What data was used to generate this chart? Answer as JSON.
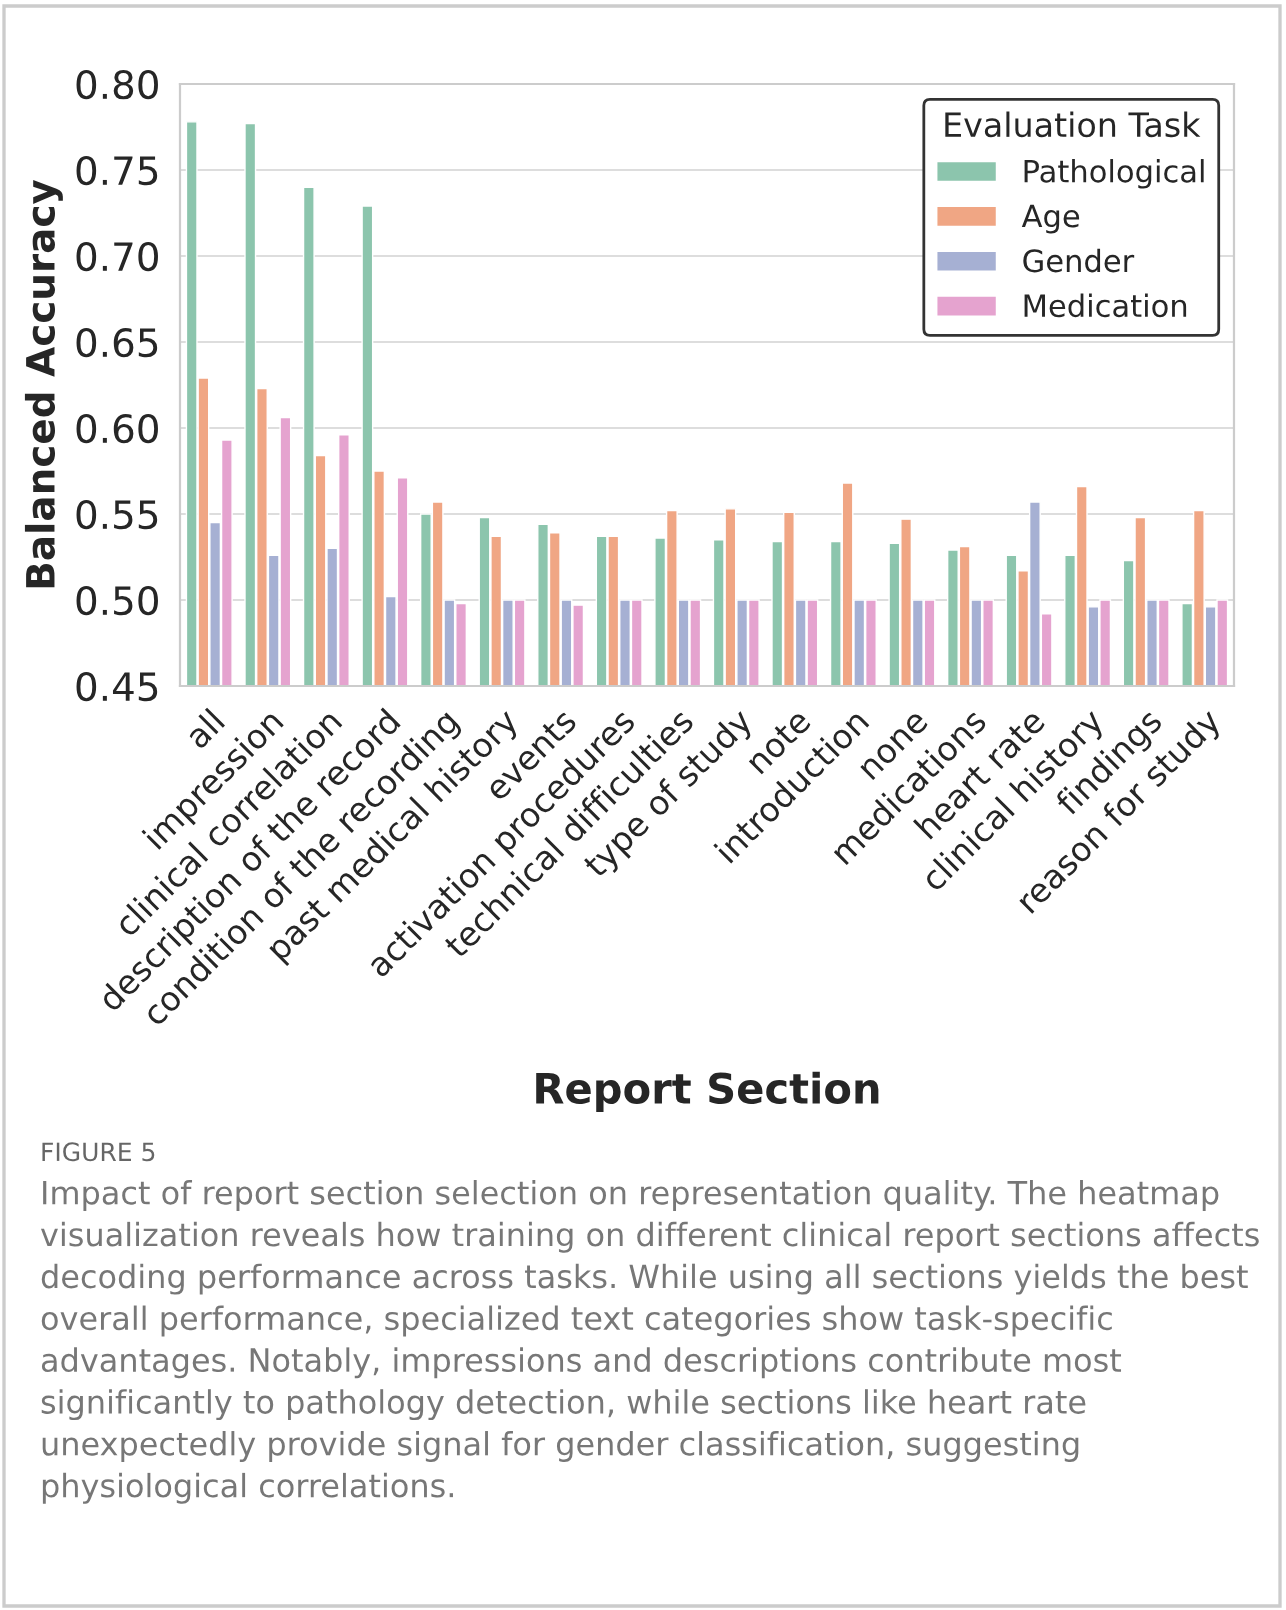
{
  "chart_data": {
    "type": "bar",
    "xlabel": "Report Section",
    "ylabel": "Balanced Accuracy",
    "legend_title": "Evaluation Task",
    "categories": [
      "all",
      "impression",
      "clinical correlation",
      "description of the record",
      "condition of the recording",
      "past medical history",
      "events",
      "activation procedures",
      "technical difficulties",
      "type of study",
      "note",
      "introduction",
      "none",
      "medications",
      "heart rate",
      "clinical history",
      "findings",
      "reason for study"
    ],
    "series": [
      {
        "name": "Pathological",
        "color": "#8cc5ad",
        "values": [
          0.778,
          0.777,
          0.74,
          0.729,
          0.55,
          0.548,
          0.544,
          0.537,
          0.536,
          0.535,
          0.534,
          0.534,
          0.533,
          0.529,
          0.526,
          0.526,
          0.523,
          0.498
        ]
      },
      {
        "name": "Age",
        "color": "#f0a684",
        "values": [
          0.629,
          0.623,
          0.584,
          0.575,
          0.557,
          0.537,
          0.539,
          0.537,
          0.552,
          0.553,
          0.551,
          0.568,
          0.547,
          0.531,
          0.517,
          0.566,
          0.548,
          0.552
        ]
      },
      {
        "name": "Gender",
        "color": "#a6b0d3",
        "values": [
          0.545,
          0.526,
          0.53,
          0.502,
          0.5,
          0.5,
          0.5,
          0.5,
          0.5,
          0.5,
          0.5,
          0.5,
          0.5,
          0.5,
          0.557,
          0.496,
          0.5,
          0.496
        ]
      },
      {
        "name": "Medication",
        "color": "#e5a3cf",
        "values": [
          0.593,
          0.606,
          0.596,
          0.571,
          0.498,
          0.5,
          0.497,
          0.5,
          0.5,
          0.5,
          0.5,
          0.5,
          0.5,
          0.5,
          0.492,
          0.5,
          0.5,
          0.5
        ]
      }
    ],
    "ylim": [
      0.45,
      0.8
    ],
    "yticks": [
      {
        "value": 0.45,
        "label": "0.45"
      },
      {
        "value": 0.5,
        "label": "0.50"
      },
      {
        "value": 0.55,
        "label": "0.55"
      },
      {
        "value": 0.6,
        "label": "0.60"
      },
      {
        "value": 0.65,
        "label": "0.65"
      },
      {
        "value": 0.7,
        "label": "0.70"
      },
      {
        "value": 0.75,
        "label": "0.75"
      },
      {
        "value": 0.8,
        "label": "0.80"
      }
    ],
    "grid": "y",
    "legend": "top right",
    "annotations": [
      "FIGURE 5",
      "Impact of report section selection on representation quality. The heatmap visualization reveals how training on different clinical report sections affects decoding performance across tasks. While using all sections yields the best overall performance, specialized text categories show task-specific advantages. Notably, impressions and descriptions contribute most significantly to pathology detection, while sections like heart rate unexpectedly provide signal for gender classification, suggesting physiological correlations."
    ]
  }
}
